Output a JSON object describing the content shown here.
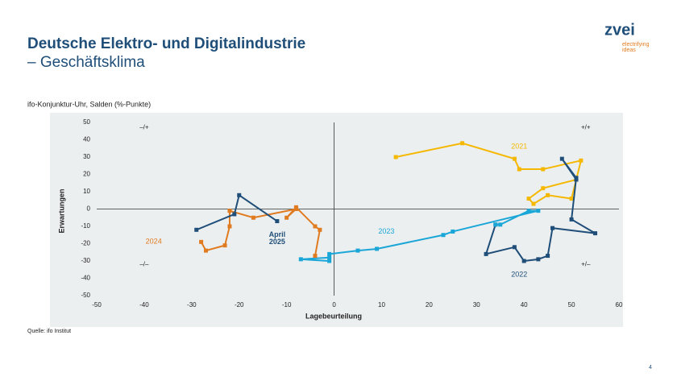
{
  "header": {
    "title": "Deutsche Elektro- und Digitalindustrie",
    "subtitle": "– Geschäftsklima"
  },
  "logo": {
    "name": "zvei",
    "tagline_1": "electrifying",
    "tagline_2": "ideas"
  },
  "chart_data": {
    "type": "line",
    "title": "ifo-Konjunktur-Uhr, Salden (%-Punkte)",
    "x_label": "Lagebeurteilung",
    "y_label": "Erwartungen",
    "xlim": [
      -50,
      60
    ],
    "xticks": [
      -50,
      -40,
      -30,
      -20,
      -10,
      0,
      10,
      20,
      30,
      40,
      50,
      60
    ],
    "ylim": [
      -50,
      50
    ],
    "yticks": [
      -50,
      -40,
      -30,
      -20,
      -10,
      0,
      10,
      20,
      30,
      40,
      50
    ],
    "quadrants": [
      "–/+",
      "+/+",
      "–/–",
      "+/–"
    ],
    "series": [
      {
        "name": "2021",
        "color": "#f5b800",
        "x": [
          13,
          27,
          38,
          39,
          44,
          52,
          50,
          45,
          42,
          41,
          44,
          51
        ],
        "values": [
          30,
          38,
          29,
          23,
          23,
          28,
          6,
          8,
          3,
          6,
          12,
          17
        ]
      },
      {
        "name": "2022",
        "color": "#1f4e79",
        "x": [
          51,
          48,
          51,
          50,
          55,
          46,
          45,
          43,
          40,
          38,
          32,
          34
        ],
        "values": [
          17,
          29,
          18,
          -6,
          -14,
          -11,
          -27,
          -29,
          -30,
          -22,
          -26,
          -9
        ]
      },
      {
        "name": "2023",
        "color": "#1aa7d8",
        "x": [
          34,
          35,
          41,
          43,
          25,
          23,
          9,
          5,
          -1,
          -1,
          -7,
          -1
        ],
        "values": [
          -9,
          -9,
          -1,
          -1,
          -13,
          -15,
          -23,
          -24,
          -26,
          -30,
          -29,
          -28
        ]
      },
      {
        "name": "2024",
        "color": "#e07b20",
        "x": [
          -4,
          -3,
          -4,
          -8,
          -10,
          -8,
          -17,
          -22,
          -22,
          -23,
          -27,
          -28
        ],
        "values": [
          -27,
          -12,
          -10,
          1,
          -5,
          0,
          -5,
          -1,
          -10,
          -21,
          -24,
          -19
        ]
      },
      {
        "name": "April 2025",
        "color": "#1f4e79",
        "x": [
          -29,
          -21,
          -20,
          -12
        ],
        "values": [
          -12,
          -3,
          8,
          -7
        ]
      }
    ]
  },
  "source": "Quelle: ifo Institut",
  "page_number": "4"
}
